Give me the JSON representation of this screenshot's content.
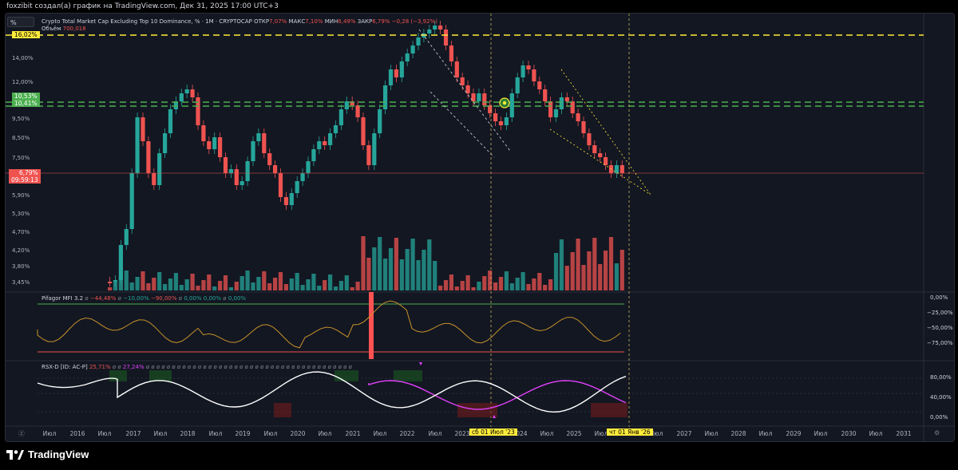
{
  "header": {
    "attribution": "foxzibit создал(а) график на TradingView.com, Дек 31, 2025 17:00 UTC+3"
  },
  "symbol_box": "%",
  "main_legend": {
    "title": "Crypto Total Market Cap Excluding Top 10 Dominance, % · 1M · CRYPTOCAP",
    "open_label": "ОТКР",
    "open_value": "7,07%",
    "high_label": "МАКС",
    "high_value": "7,10%",
    "low_label": "МИН",
    "low_value": "6,49%",
    "close_label": "ЗАКР",
    "close_value": "6,79%",
    "change": "−0,28 (−3,92%)",
    "volume_label": "Объём",
    "volume_value": "700,018"
  },
  "price_axis": {
    "ticks": [
      "14,00%",
      "12,00%",
      "9,50%",
      "8,50%",
      "7,50%",
      "5,90%",
      "5,30%",
      "4,70%",
      "4,20%",
      "3,80%",
      "3,45%"
    ],
    "badge_top": "16,02%",
    "badge_green_1": "10,53%",
    "badge_green_2": "10,41%",
    "badge_current": "6,79%",
    "badge_timer": "09:59:13"
  },
  "mfi_panel": {
    "name": "Pifagor MFI 3.2",
    "values": [
      "−44,48%",
      "−10,00%",
      "−90,00%",
      "0,00%",
      "0,00%",
      "0,00%"
    ],
    "axis": [
      "0,00%",
      "−25,00%",
      "−50,00%",
      "−75,00%"
    ]
  },
  "rsx_panel": {
    "name": "RSX-D [ID: AC-P]",
    "value_red": "25,71%",
    "value_purple": "27,24%",
    "axis": [
      "80,00%",
      "40,00%",
      "0,00%"
    ]
  },
  "time_axis": {
    "labels": [
      "Июл",
      "2016",
      "Июл",
      "2017",
      "Июл",
      "2018",
      "Июл",
      "2019",
      "Июл",
      "2020",
      "Июл",
      "2021",
      "Июл",
      "2022",
      "Июл",
      "2023",
      "2024",
      "Июл",
      "2025",
      "Июл",
      "Июл",
      "2027",
      "Июл",
      "2028",
      "Июл",
      "2029",
      "Июл",
      "2030",
      "Июл",
      "2031"
    ],
    "crosshair_label": "сб 01 Июл '23",
    "current_label": "чт 01 Янв '26"
  },
  "footer": {
    "brand": "TradingView"
  },
  "colors": {
    "bg": "#131722",
    "up": "#26a69a",
    "down": "#ef5350",
    "yellow": "#ffeb3b",
    "green_line": "#4caf50",
    "orange": "#c8922a",
    "magenta": "#e040fb"
  }
}
